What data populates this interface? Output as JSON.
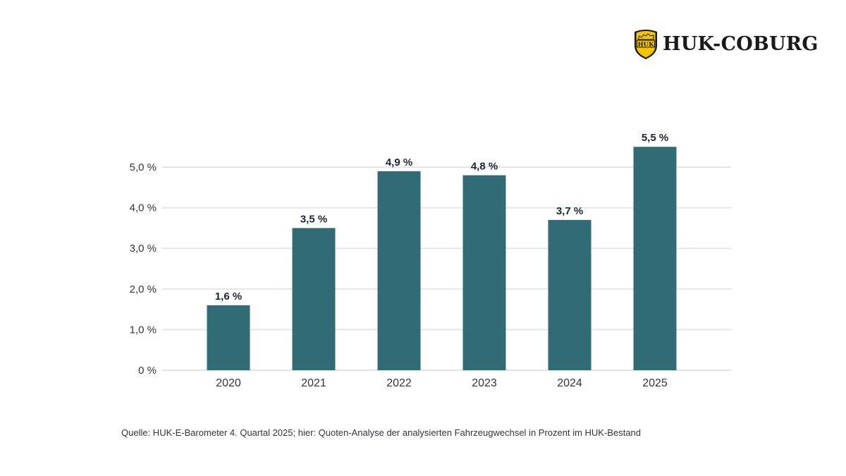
{
  "brand": {
    "name": "HUK-COBURG",
    "shield_text": "HUK",
    "shield_color": "#f5c400"
  },
  "source_note": "Quelle: HUK-E-Barometer 4. Quartal 2025; hier: Quoten-Analyse der analysierten Fahrzeugwechsel in Prozent im HUK-Bestand",
  "colors": {
    "bar": "#306b76",
    "grid": "#e3e5e8",
    "axis_text": "#2f3440",
    "label_text": "#1d2433"
  },
  "chart_data": {
    "type": "bar",
    "title": "",
    "xlabel": "",
    "ylabel": "",
    "categories": [
      "2020",
      "2021",
      "2022",
      "2023",
      "2024",
      "2025"
    ],
    "values": [
      1.6,
      3.5,
      4.9,
      4.8,
      3.7,
      5.5
    ],
    "value_labels": [
      "1,6 %",
      "3,5 %",
      "4,9 %",
      "4,8 %",
      "3,7 %",
      "5,5 %"
    ],
    "ylim": [
      0,
      5.5
    ],
    "yticks": [
      0,
      1,
      2,
      3,
      4,
      5
    ],
    "ytick_labels": [
      "0 %",
      "1,0 %",
      "2,0 %",
      "3,0 %",
      "4,0 %",
      "5,0 %"
    ],
    "grid": true,
    "legend": "none",
    "unit": "%"
  }
}
